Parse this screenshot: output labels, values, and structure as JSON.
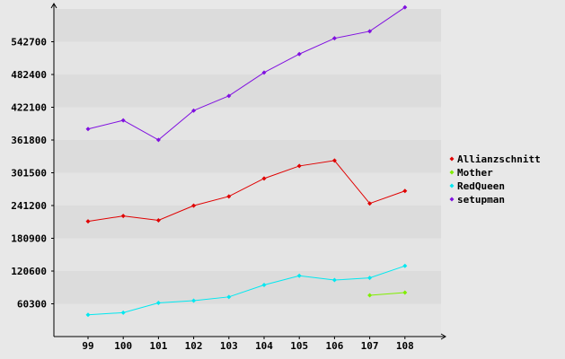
{
  "chart_data": {
    "type": "line",
    "title": "",
    "xlabel": "",
    "ylabel": "",
    "categories": [
      "99",
      "100",
      "101",
      "102",
      "103",
      "104",
      "105",
      "106",
      "107",
      "108"
    ],
    "y_ticks": [
      "60300",
      "120600",
      "180900",
      "241200",
      "301500",
      "361800",
      "422100",
      "482400",
      "542700"
    ],
    "ylim": [
      0,
      603000
    ],
    "grid": "horizontal bands",
    "legend_position": "right",
    "series": [
      {
        "name": "Allianzschnitt",
        "color": "#e00000",
        "values": [
          212000,
          222000,
          214000,
          241000,
          258000,
          291000,
          314000,
          324000,
          245000,
          268000
        ]
      },
      {
        "name": "Mother",
        "color": "#80ee00",
        "values": [
          null,
          null,
          null,
          null,
          null,
          null,
          null,
          null,
          76000,
          81000
        ]
      },
      {
        "name": "RedQueen",
        "color": "#00e8f0",
        "values": [
          40000,
          44000,
          62000,
          66000,
          73000,
          95000,
          112000,
          104000,
          108000,
          130000
        ]
      },
      {
        "name": "setupman",
        "color": "#8010e0",
        "values": [
          382000,
          398000,
          362000,
          416000,
          443000,
          486000,
          520000,
          549000,
          562000,
          606000
        ]
      }
    ]
  }
}
